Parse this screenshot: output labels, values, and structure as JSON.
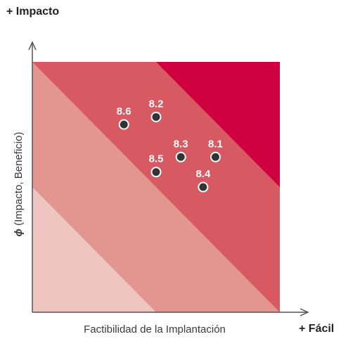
{
  "labels": {
    "top_left": "+ Impacto",
    "bottom_right": "+ Fácil",
    "x_axis": "Factibilidad de la Implantación",
    "y_axis_symbol": "ϕ",
    "y_axis": " (Impacto, Beneficio)"
  },
  "colors": {
    "zone_1": "#eec5c0",
    "zone_2": "#e3958f",
    "zone_3": "#d75a62",
    "zone_4": "#cf0040",
    "point": "#333333",
    "axis": "#555555"
  },
  "chart_data": {
    "type": "scatter",
    "xlabel": "Factibilidad de la Implantación",
    "ylabel": "ϕ (Impacto, Beneficio)",
    "xlim": [
      0,
      10
    ],
    "ylim": [
      0,
      10
    ],
    "zones": [
      {
        "name": "zone_1",
        "color": "#eec5c0",
        "x_plus_y_max": 5.0
      },
      {
        "name": "zone_2",
        "color": "#e3958f",
        "x_plus_y_max": 10.0
      },
      {
        "name": "zone_3",
        "color": "#d75a62",
        "x_plus_y_max": 15.0
      },
      {
        "name": "zone_4",
        "color": "#cf0040",
        "x_plus_y_max": 20.0
      }
    ],
    "points": [
      {
        "label": "8.6",
        "x": 3.7,
        "y": 7.5
      },
      {
        "label": "8.2",
        "x": 5.0,
        "y": 7.8
      },
      {
        "label": "8.3",
        "x": 6.0,
        "y": 6.2
      },
      {
        "label": "8.1",
        "x": 7.4,
        "y": 6.2
      },
      {
        "label": "8.5",
        "x": 5.0,
        "y": 5.6
      },
      {
        "label": "8.4",
        "x": 6.9,
        "y": 5.0
      }
    ]
  }
}
